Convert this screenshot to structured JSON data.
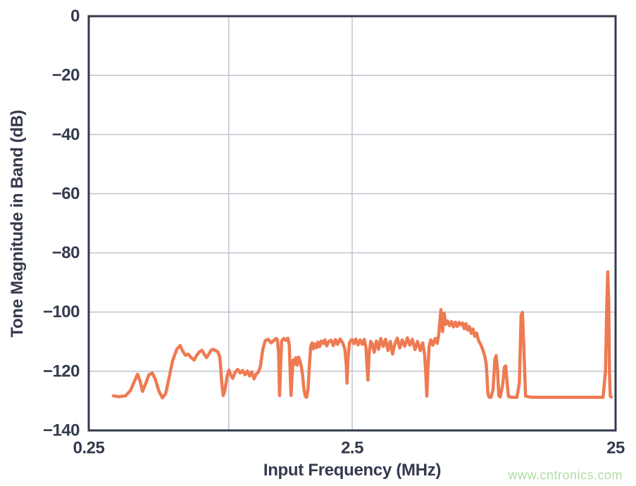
{
  "chart_data": {
    "type": "line",
    "title": "",
    "xlabel": "Input Frequency (MHz)",
    "ylabel": "Tone Magnitude in Band (dB)",
    "x_scale": "log",
    "x_range": [
      0.25,
      25
    ],
    "y_range": [
      -140,
      0
    ],
    "grid": true,
    "legend_position": "none",
    "x_ticks": [
      {
        "value": 0.25,
        "label": "0.25"
      },
      {
        "value": 2.5,
        "label": "2.5"
      },
      {
        "value": 25,
        "label": "25"
      }
    ],
    "y_ticks": [
      {
        "value": 0,
        "label": "0"
      },
      {
        "value": -20,
        "label": "−20"
      },
      {
        "value": -40,
        "label": "−40"
      },
      {
        "value": -60,
        "label": "−60"
      },
      {
        "value": -80,
        "label": "−80"
      },
      {
        "value": -100,
        "label": "−100"
      },
      {
        "value": -120,
        "label": "−120"
      },
      {
        "value": -140,
        "label": "−140"
      }
    ],
    "x_gridlines": [
      0.85,
      2.5
    ],
    "y_gridlines": [
      -20,
      -40,
      -60,
      -80,
      -100,
      -120
    ],
    "series": [
      {
        "name": "tone-magnitude",
        "color": "#EF7A52",
        "points": [
          [
            0.31,
            -128.3
          ],
          [
            0.325,
            -128.6
          ],
          [
            0.345,
            -128.3
          ],
          [
            0.36,
            -126.5
          ],
          [
            0.372,
            -123.5
          ],
          [
            0.383,
            -121
          ],
          [
            0.392,
            -123.5
          ],
          [
            0.4,
            -126.8
          ],
          [
            0.412,
            -124
          ],
          [
            0.423,
            -121.2
          ],
          [
            0.436,
            -120.6
          ],
          [
            0.448,
            -122.8
          ],
          [
            0.462,
            -126.8
          ],
          [
            0.476,
            -129
          ],
          [
            0.49,
            -127.5
          ],
          [
            0.505,
            -122
          ],
          [
            0.52,
            -116.5
          ],
          [
            0.54,
            -112.5
          ],
          [
            0.556,
            -111.3
          ],
          [
            0.568,
            -113.2
          ],
          [
            0.582,
            -114.6
          ],
          [
            0.597,
            -114.2
          ],
          [
            0.612,
            -115.4
          ],
          [
            0.628,
            -116.2
          ],
          [
            0.643,
            -114.6
          ],
          [
            0.658,
            -113.4
          ],
          [
            0.673,
            -112.9
          ],
          [
            0.688,
            -114.4
          ],
          [
            0.7,
            -115.4
          ],
          [
            0.714,
            -114.2
          ],
          [
            0.728,
            -112.9
          ],
          [
            0.743,
            -112.6
          ],
          [
            0.757,
            -113
          ],
          [
            0.772,
            -113.4
          ],
          [
            0.785,
            -115
          ],
          [
            0.793,
            -119
          ],
          [
            0.8,
            -124
          ],
          [
            0.81,
            -128.2
          ],
          [
            0.822,
            -126.5
          ],
          [
            0.838,
            -121.5
          ],
          [
            0.852,
            -119.6
          ],
          [
            0.865,
            -121.3
          ],
          [
            0.88,
            -122.4
          ],
          [
            0.9,
            -120.2
          ],
          [
            0.92,
            -119.4
          ],
          [
            0.94,
            -120.6
          ],
          [
            0.96,
            -119.7
          ],
          [
            0.98,
            -121.2
          ],
          [
            1.0,
            -119.9
          ],
          [
            1.02,
            -121.6
          ],
          [
            1.04,
            -120.2
          ],
          [
            1.06,
            -122.6
          ],
          [
            1.08,
            -121
          ],
          [
            1.1,
            -120.4
          ],
          [
            1.12,
            -118.5
          ],
          [
            1.145,
            -112.5
          ],
          [
            1.17,
            -109.6
          ],
          [
            1.2,
            -109.2
          ],
          [
            1.23,
            -110.4
          ],
          [
            1.26,
            -109.6
          ],
          [
            1.285,
            -108.9
          ],
          [
            1.3,
            -109.3
          ],
          [
            1.315,
            -114
          ],
          [
            1.325,
            -128.2
          ],
          [
            1.338,
            -118
          ],
          [
            1.35,
            -109.8
          ],
          [
            1.375,
            -108.9
          ],
          [
            1.4,
            -109.6
          ],
          [
            1.425,
            -108.8
          ],
          [
            1.443,
            -111
          ],
          [
            1.455,
            -121
          ],
          [
            1.465,
            -128.2
          ],
          [
            1.478,
            -122
          ],
          [
            1.492,
            -116.2
          ],
          [
            1.51,
            -117.6
          ],
          [
            1.528,
            -115.4
          ],
          [
            1.547,
            -117.9
          ],
          [
            1.566,
            -115.2
          ],
          [
            1.585,
            -116.6
          ],
          [
            1.6,
            -118
          ],
          [
            1.62,
            -121
          ],
          [
            1.64,
            -126
          ],
          [
            1.66,
            -128.5
          ],
          [
            1.68,
            -128.8
          ],
          [
            1.7,
            -126
          ],
          [
            1.72,
            -118
          ],
          [
            1.74,
            -111.8
          ],
          [
            1.76,
            -110.4
          ],
          [
            1.78,
            -112.4
          ],
          [
            1.805,
            -110.7
          ],
          [
            1.83,
            -112.1
          ],
          [
            1.855,
            -110.1
          ],
          [
            1.88,
            -111.7
          ],
          [
            1.91,
            -109.8
          ],
          [
            1.94,
            -110.6
          ],
          [
            1.97,
            -109.4
          ],
          [
            2.0,
            -111.4
          ],
          [
            2.04,
            -109.9
          ],
          [
            2.08,
            -109.5
          ],
          [
            2.12,
            -111.3
          ],
          [
            2.16,
            -109.3
          ],
          [
            2.2,
            -110.9
          ],
          [
            2.25,
            -109.1
          ],
          [
            2.3,
            -110.4
          ],
          [
            2.345,
            -112.5
          ],
          [
            2.375,
            -118
          ],
          [
            2.39,
            -124
          ],
          [
            2.41,
            -116
          ],
          [
            2.44,
            -110.5
          ],
          [
            2.47,
            -109.6
          ],
          [
            2.5,
            -109.3
          ],
          [
            2.54,
            -110.7
          ],
          [
            2.58,
            -109.1
          ],
          [
            2.63,
            -111.1
          ],
          [
            2.68,
            -109.4
          ],
          [
            2.73,
            -110.9
          ],
          [
            2.78,
            -109.2
          ],
          [
            2.82,
            -112
          ],
          [
            2.85,
            -119
          ],
          [
            2.87,
            -123
          ],
          [
            2.9,
            -114
          ],
          [
            2.94,
            -109.9
          ],
          [
            2.98,
            -110.6
          ],
          [
            3.03,
            -113.6
          ],
          [
            3.09,
            -109.8
          ],
          [
            3.15,
            -112.6
          ],
          [
            3.21,
            -108.9
          ],
          [
            3.28,
            -111.6
          ],
          [
            3.35,
            -109.2
          ],
          [
            3.42,
            -113
          ],
          [
            3.49,
            -109.9
          ],
          [
            3.56,
            -114.2
          ],
          [
            3.63,
            -110.8
          ],
          [
            3.71,
            -108.8
          ],
          [
            3.79,
            -112.2
          ],
          [
            3.87,
            -109.4
          ],
          [
            3.96,
            -111.6
          ],
          [
            4.05,
            -108.7
          ],
          [
            4.14,
            -111.2
          ],
          [
            4.23,
            -109.2
          ],
          [
            4.33,
            -112.7
          ],
          [
            4.43,
            -109.9
          ],
          [
            4.53,
            -113
          ],
          [
            4.63,
            -110.4
          ],
          [
            4.71,
            -114.5
          ],
          [
            4.76,
            -121
          ],
          [
            4.8,
            -128.4
          ],
          [
            4.85,
            -119
          ],
          [
            4.9,
            -111.5
          ],
          [
            4.97,
            -109.4
          ],
          [
            5.06,
            -111.2
          ],
          [
            5.16,
            -108.9
          ],
          [
            5.26,
            -110.6
          ],
          [
            5.33,
            -107.5
          ],
          [
            5.39,
            -102.5
          ],
          [
            5.43,
            -99.2
          ],
          [
            5.47,
            -102.5
          ],
          [
            5.51,
            -106.6
          ],
          [
            5.55,
            -103.2
          ],
          [
            5.59,
            -100.4
          ],
          [
            5.66,
            -104.2
          ],
          [
            5.76,
            -103
          ],
          [
            5.86,
            -104.6
          ],
          [
            5.96,
            -103.2
          ],
          [
            6.06,
            -105
          ],
          [
            6.16,
            -103.4
          ],
          [
            6.26,
            -104.9
          ],
          [
            6.36,
            -103.5
          ],
          [
            6.46,
            -104.3
          ],
          [
            6.56,
            -103.7
          ],
          [
            6.66,
            -105.6
          ],
          [
            6.76,
            -103.9
          ],
          [
            6.86,
            -106.1
          ],
          [
            6.97,
            -104.9
          ],
          [
            7.08,
            -107.2
          ],
          [
            7.19,
            -105.7
          ],
          [
            7.3,
            -108.2
          ],
          [
            7.42,
            -107.1
          ],
          [
            7.55,
            -109.7
          ],
          [
            7.69,
            -110.9
          ],
          [
            7.83,
            -112.7
          ],
          [
            7.97,
            -114.9
          ],
          [
            8.07,
            -117.5
          ],
          [
            8.13,
            -122
          ],
          [
            8.19,
            -127.5
          ],
          [
            8.27,
            -128.7
          ],
          [
            8.42,
            -128.8
          ],
          [
            8.57,
            -126
          ],
          [
            8.7,
            -116
          ],
          [
            8.8,
            -114.7
          ],
          [
            8.91,
            -119.5
          ],
          [
            9.01,
            -128.2
          ],
          [
            9.12,
            -128.7
          ],
          [
            9.32,
            -124.5
          ],
          [
            9.46,
            -118.6
          ],
          [
            9.57,
            -118.2
          ],
          [
            9.68,
            -123.5
          ],
          [
            9.8,
            -128.5
          ],
          [
            10.05,
            -128.8
          ],
          [
            10.55,
            -128.8
          ],
          [
            10.78,
            -124
          ],
          [
            10.95,
            -101
          ],
          [
            11.08,
            -100.1
          ],
          [
            11.22,
            -113
          ],
          [
            11.38,
            -128.4
          ],
          [
            12.0,
            -128.8
          ],
          [
            13.5,
            -128.8
          ],
          [
            15.0,
            -128.8
          ],
          [
            17.0,
            -128.8
          ],
          [
            19.0,
            -128.8
          ],
          [
            21.0,
            -128.8
          ],
          [
            22.4,
            -128.8
          ],
          [
            22.9,
            -120
          ],
          [
            23.15,
            -98
          ],
          [
            23.35,
            -86.4
          ],
          [
            23.55,
            -97
          ],
          [
            23.7,
            -120
          ],
          [
            23.85,
            -128.4
          ],
          [
            24.1,
            -128.7
          ]
        ]
      }
    ]
  },
  "watermark": {
    "text": "www.cntronics.com",
    "color": "#AEDBA3"
  },
  "colors": {
    "axis": "#343A4E",
    "grid": "#C2C6D2",
    "background": "#FFFFFF",
    "trace": "#EF7A52"
  }
}
